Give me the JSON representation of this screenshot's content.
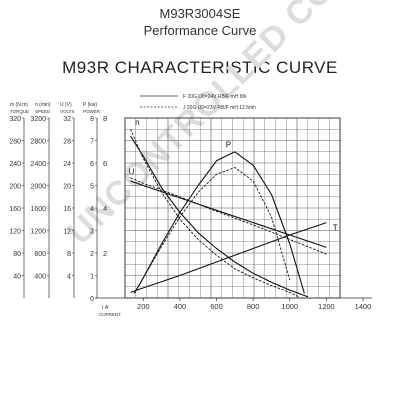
{
  "header": {
    "model": "M93R3004SE",
    "subtitle": "Performance Curve"
  },
  "watermark": "UNCONTROLLED COPY",
  "chart_data": {
    "type": "line",
    "title": "M93R  CHARACTERISTIC  CURVE",
    "legend": [
      {
        "style": "solid",
        "text": "F  20G       U0=24V   RB/F  mH  8/k"
      },
      {
        "style": "dashed",
        "text": "J  20G       U0=23V   RB/F  mH  12.5mh"
      }
    ],
    "x_axis": {
      "label": "I  A",
      "sublabel": "CURRENT",
      "ticks": [
        200,
        400,
        600,
        800,
        1000,
        1200,
        1400
      ],
      "range": [
        100,
        1400
      ]
    },
    "inner_axis": {
      "ticks": [
        2,
        4,
        6,
        8
      ],
      "range": [
        0,
        8
      ]
    },
    "left_axes": [
      {
        "header": "m  (N.m)",
        "sublabel": "TORQUE",
        "ticks": [
          40,
          80,
          120,
          160,
          200,
          240,
          280,
          320
        ],
        "range": [
          0,
          320
        ]
      },
      {
        "header": "n (min)",
        "sublabel": "SPEED",
        "ticks": [
          400,
          800,
          1200,
          1600,
          2000,
          2400,
          2800,
          3200
        ],
        "range": [
          0,
          3200
        ]
      },
      {
        "header": "U (V)",
        "sublabel": "VOLTS",
        "ticks": [
          4,
          8,
          12,
          16,
          20,
          24,
          28,
          32
        ],
        "range": [
          0,
          32
        ]
      },
      {
        "header": "P (kw)",
        "sublabel": "POWER",
        "ticks": [
          0,
          1,
          2,
          3,
          4,
          5,
          6,
          7,
          8
        ],
        "range": [
          0,
          8
        ]
      }
    ],
    "grid": true,
    "series": [
      {
        "name": "n",
        "style": "solid",
        "x": [
          130,
          200,
          300,
          400,
          500,
          600,
          700,
          800,
          900,
          1000,
          1100
        ],
        "y": [
          7.2,
          6.3,
          4.9,
          3.8,
          2.9,
          2.2,
          1.6,
          1.1,
          0.7,
          0.35,
          0.05
        ]
      },
      {
        "name": "P",
        "style": "solid",
        "x": [
          150,
          200,
          300,
          400,
          500,
          600,
          700,
          800,
          900,
          1000,
          1080
        ],
        "y": [
          0.2,
          0.9,
          2.4,
          3.8,
          5.0,
          6.1,
          6.5,
          5.9,
          4.6,
          2.4,
          0.2
        ]
      },
      {
        "name": "U",
        "style": "solid",
        "x": [
          130,
          200,
          400,
          600,
          800,
          1000,
          1200
        ],
        "y": [
          5.2,
          5.0,
          4.45,
          3.9,
          3.35,
          2.8,
          2.25
        ]
      },
      {
        "name": "T",
        "style": "solid",
        "x": [
          130,
          200,
          400,
          600,
          800,
          1000,
          1200
        ],
        "y": [
          0.25,
          0.45,
          1.0,
          1.6,
          2.2,
          2.8,
          3.35
        ]
      },
      {
        "name": "n (J)",
        "style": "dashed",
        "x": [
          130,
          200,
          300,
          400,
          500,
          600,
          700,
          800,
          900,
          1000,
          1050
        ],
        "y": [
          7.5,
          6.2,
          4.7,
          3.5,
          2.6,
          1.9,
          1.3,
          0.9,
          0.55,
          0.25,
          0.05
        ]
      },
      {
        "name": "P (J)",
        "style": "dashed",
        "x": [
          150,
          200,
          300,
          400,
          500,
          600,
          700,
          800,
          900,
          1000
        ],
        "y": [
          0.2,
          0.9,
          2.3,
          3.6,
          4.7,
          5.5,
          5.8,
          5.2,
          3.6,
          0.8
        ]
      },
      {
        "name": "U (J)",
        "style": "dashed",
        "x": [
          130,
          200,
          400,
          600,
          800,
          1000,
          1200
        ],
        "y": [
          5.35,
          5.1,
          4.5,
          3.85,
          3.25,
          2.6,
          1.95
        ]
      }
    ],
    "curve_labels": [
      {
        "text": "n",
        "x": 155,
        "y": 7.7
      },
      {
        "text": "P",
        "x": 650,
        "y": 6.7
      },
      {
        "text": "U",
        "x": 120,
        "y": 5.5
      },
      {
        "text": "T",
        "x": 1235,
        "y": 3.0
      }
    ]
  }
}
